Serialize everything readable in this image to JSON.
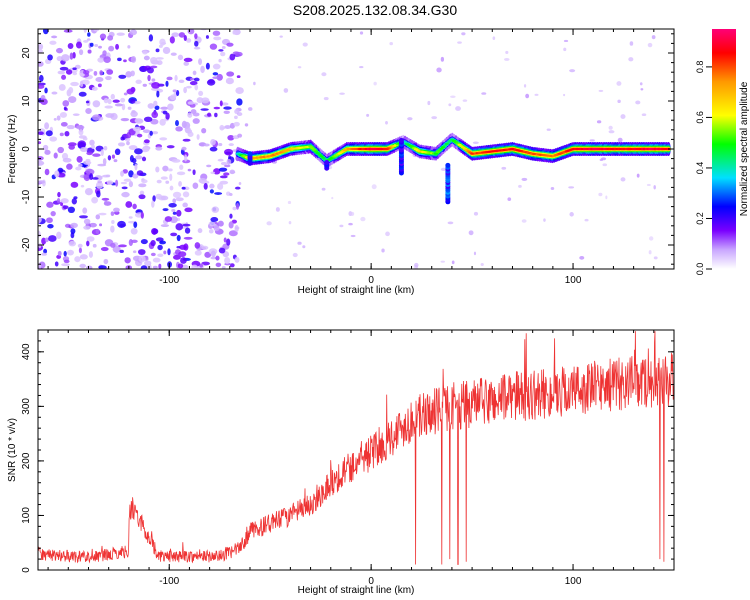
{
  "figure_title": "S208.2025.132.08.34.G30",
  "colors": {
    "snr_line": "#ee3333",
    "axis": "#000000"
  },
  "chart_data": [
    {
      "type": "heatmap",
      "title": "",
      "xlabel": "Height of straight line (km)",
      "ylabel": "Frequency (Hz)",
      "xlim": [
        -165,
        150
      ],
      "ylim": [
        -25,
        25
      ],
      "xticks": [
        -100,
        0,
        100
      ],
      "yticks": [
        -20,
        -10,
        0,
        10,
        20
      ],
      "noise_region": {
        "x_range": [
          -165,
          -68
        ],
        "level": "low (0.0-0.25)"
      },
      "ridge": [
        {
          "x": -66,
          "y": -1.0,
          "amp": 0.4
        },
        {
          "x": -60,
          "y": -2.0,
          "amp": 0.75
        },
        {
          "x": -50,
          "y": -1.5,
          "amp": 0.8
        },
        {
          "x": -40,
          "y": 0.0,
          "amp": 0.75
        },
        {
          "x": -30,
          "y": 0.5,
          "amp": 0.6
        },
        {
          "x": -22,
          "y": -2.5,
          "amp": 0.45
        },
        {
          "x": -12,
          "y": 0.0,
          "amp": 0.75
        },
        {
          "x": 0,
          "y": 0.0,
          "amp": 0.95
        },
        {
          "x": 8,
          "y": 0.0,
          "amp": 0.9
        },
        {
          "x": 16,
          "y": 1.5,
          "amp": 0.4
        },
        {
          "x": 24,
          "y": -0.5,
          "amp": 0.7
        },
        {
          "x": 32,
          "y": -1.0,
          "amp": 0.55
        },
        {
          "x": 40,
          "y": 2.0,
          "amp": 0.45
        },
        {
          "x": 50,
          "y": -1.0,
          "amp": 0.85
        },
        {
          "x": 60,
          "y": -0.5,
          "amp": 0.9
        },
        {
          "x": 70,
          "y": 0.0,
          "amp": 0.9
        },
        {
          "x": 80,
          "y": -1.0,
          "amp": 0.85
        },
        {
          "x": 90,
          "y": -1.5,
          "amp": 0.8
        },
        {
          "x": 100,
          "y": 0.0,
          "amp": 0.9
        },
        {
          "x": 110,
          "y": 0.0,
          "amp": 0.95
        },
        {
          "x": 120,
          "y": 0.0,
          "amp": 0.9
        },
        {
          "x": 130,
          "y": 0.0,
          "amp": 0.9
        },
        {
          "x": 140,
          "y": 0.0,
          "amp": 0.95
        },
        {
          "x": 148,
          "y": 0.0,
          "amp": 0.9
        }
      ],
      "colorbar": {
        "label": "Normalized spectral amplitude",
        "ticks": [
          0.0,
          0.2,
          0.4,
          0.6,
          0.8
        ],
        "range": [
          0,
          0.95
        ]
      }
    },
    {
      "type": "line",
      "title": "",
      "xlabel": "Height of straight line (km)",
      "ylabel": "SNR (10 * v/v)",
      "xlim": [
        -165,
        150
      ],
      "ylim": [
        0,
        440
      ],
      "xticks": [
        -100,
        0,
        100
      ],
      "yticks": [
        0,
        100,
        200,
        300,
        400
      ],
      "series": [
        {
          "name": "SNR",
          "x": [
            -165,
            -150,
            -135,
            -120,
            -119,
            -105,
            -90,
            -75,
            -65,
            -60,
            -50,
            -40,
            -30,
            -20,
            -10,
            0,
            10,
            20,
            30,
            40,
            50,
            60,
            70,
            80,
            90,
            100,
            110,
            120,
            130,
            140,
            145,
            150
          ],
          "y": [
            30,
            25,
            25,
            35,
            120,
            25,
            25,
            25,
            40,
            70,
            85,
            100,
            120,
            160,
            190,
            215,
            245,
            275,
            290,
            300,
            305,
            310,
            320,
            320,
            325,
            330,
            335,
            340,
            345,
            345,
            350,
            350
          ]
        }
      ],
      "dropouts": [
        {
          "x": 22,
          "y": 10
        },
        {
          "x": 35,
          "y": 10
        },
        {
          "x": 39,
          "y": 20
        },
        {
          "x": 43,
          "y": 10
        },
        {
          "x": 47,
          "y": 15
        },
        {
          "x": 143,
          "y": 20
        },
        {
          "x": 145,
          "y": 15
        }
      ]
    }
  ]
}
